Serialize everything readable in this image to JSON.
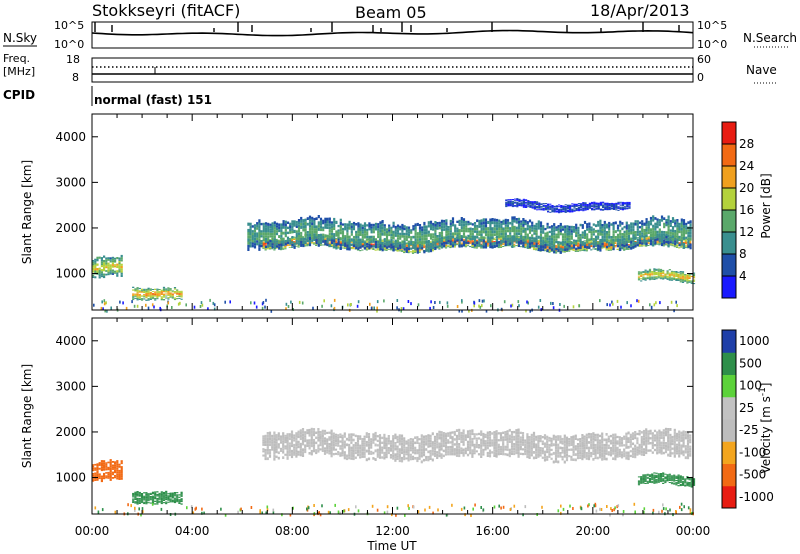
{
  "header": {
    "station": "Stokkseyri (fitACF)",
    "beam": "Beam 05",
    "date": "18/Apr/2013"
  },
  "noise_panel": {
    "label": "N.Sky",
    "left_ticks": [
      "10^5",
      "10^0"
    ],
    "right_ticks": [
      "10^5",
      "10^0"
    ],
    "legend": "N.Search"
  },
  "freq_panel": {
    "label_line1": "Freq.",
    "label_line2": "[MHz]",
    "left_ticks": [
      "18",
      "8"
    ],
    "right_ticks": [
      "60",
      "0"
    ],
    "legend": "Nave"
  },
  "cpid": {
    "label": "CPID",
    "value": "normal (fast) 151"
  },
  "x_axis": {
    "label": "Time UT",
    "ticks": [
      "00:00",
      "04:00",
      "08:00",
      "12:00",
      "16:00",
      "20:00",
      "00:00"
    ]
  },
  "y_axis": {
    "label": "Slant Range [km]",
    "ticks": [
      1000,
      2000,
      3000,
      4000
    ],
    "range": [
      200,
      4500
    ]
  },
  "colors": {
    "power": [
      "#1a1aff",
      "#1f4fa8",
      "#3a8f8f",
      "#5aa86a",
      "#b4d23c",
      "#f0a01e",
      "#f26a14",
      "#e81c12"
    ],
    "velocity": [
      "#e81c12",
      "#f26a14",
      "#f3a51e",
      "#bdbdbd",
      "#c2c2c2",
      "#5cd23a",
      "#2e8f4a",
      "#1f3fa8"
    ]
  },
  "chart_data": [
    {
      "type": "heatmap",
      "name": "power",
      "colorbar": {
        "label": "Power [dB]",
        "ticks": [
          "4",
          "8",
          "12",
          "16",
          "20",
          "24",
          "28"
        ],
        "range": [
          0,
          32
        ]
      },
      "regions": [
        {
          "x": [
            6.8,
            23.9
          ],
          "y_center": 1650,
          "thickness": 280,
          "level": 28
        },
        {
          "x": [
            6.2,
            23.9
          ],
          "y_center": 1850,
          "thickness": 700,
          "level": 14
        },
        {
          "x": [
            0.0,
            1.2
          ],
          "y_center": 1100,
          "thickness": 500,
          "level": 20
        },
        {
          "x": [
            1.6,
            3.6
          ],
          "y_center": 520,
          "thickness": 300,
          "level": 24
        },
        {
          "x": [
            21.8,
            24.0
          ],
          "y_center": 900,
          "thickness": 260,
          "level": 22
        },
        {
          "x": [
            16.5,
            21.5
          ],
          "y_center": 2500,
          "thickness": 200,
          "level": 6
        }
      ]
    },
    {
      "type": "heatmap",
      "name": "velocity",
      "colorbar": {
        "label": "Velocity [m s^-1]",
        "ticks": [
          "1000",
          "500",
          "100",
          "25",
          "-25",
          "-100",
          "-500",
          "-1000"
        ],
        "range": [
          -1000,
          1000
        ]
      },
      "regions": [
        {
          "x": [
            6.8,
            23.9
          ],
          "y_center": 1700,
          "thickness": 650,
          "level": 0
        },
        {
          "x": [
            0.0,
            1.2
          ],
          "y_center": 1100,
          "thickness": 500,
          "level": -150
        },
        {
          "x": [
            1.6,
            3.6
          ],
          "y_center": 520,
          "thickness": 300,
          "level": 150
        },
        {
          "x": [
            21.8,
            24.0
          ],
          "y_center": 900,
          "thickness": 260,
          "level": 150
        }
      ]
    }
  ]
}
